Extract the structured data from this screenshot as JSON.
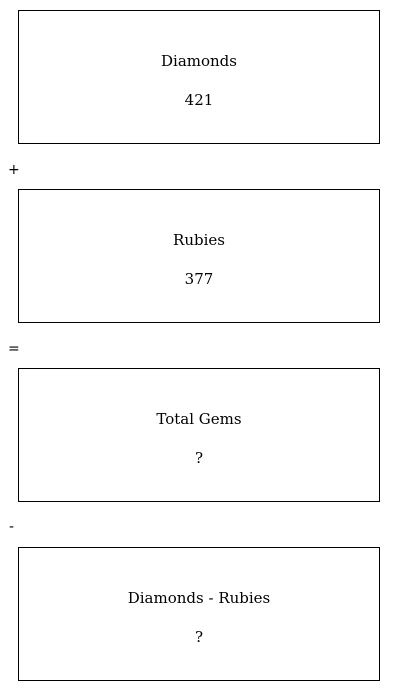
{
  "boxes": [
    {
      "label": "Diamonds",
      "value": "421"
    },
    {
      "label": "Rubies",
      "value": "377"
    },
    {
      "label": "Total Gems",
      "value": "?"
    },
    {
      "label": "Diamonds - Rubies",
      "value": "?"
    }
  ],
  "operators": [
    "+",
    "=",
    "-"
  ]
}
